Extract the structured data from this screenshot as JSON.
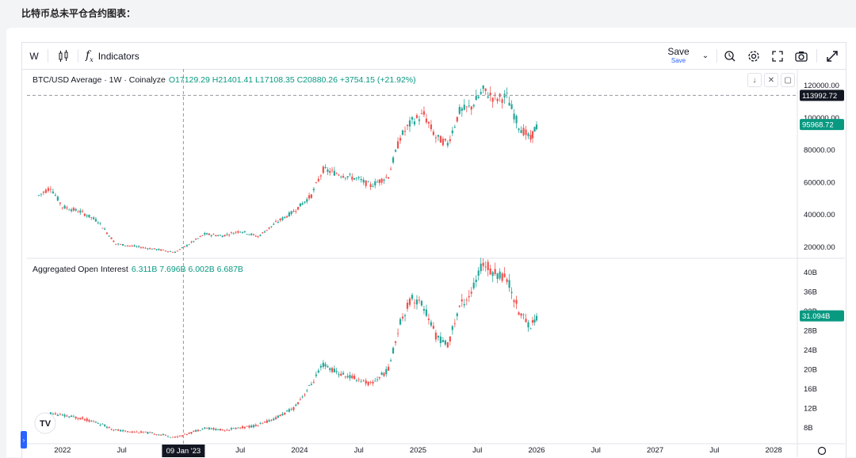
{
  "page": {
    "title": "比特币总未平仓合约图表："
  },
  "toolbar": {
    "interval": "W",
    "chart_type_icon": "candles-icon",
    "indicators_label": "Indicators",
    "indicators_icon": "function-icon",
    "save_label": "Save",
    "save_sublabel": "Save",
    "right_icons": [
      "magnifier-alert-icon",
      "gear-icon",
      "fullscreen-icon",
      "camera-icon",
      "expand-arrows-icon"
    ]
  },
  "price_pane": {
    "symbol": "BTC/USD Average · 1W · Coinalyze",
    "ohlc_text": "O17129.29 H21401.41 L17108.35 C20880.26 +3754.15 (+21.92%)",
    "crosshair_label": "113992.72",
    "last_price_label": "95968.72",
    "buttons": [
      "arrow-down-icon",
      "close-icon",
      "maximize-icon"
    ]
  },
  "oi_pane": {
    "title": "Aggregated Open Interest",
    "values_text": "6.311B 7.696B 6.002B 6.687B",
    "last_value_label": "31.094B"
  },
  "x_axis": {
    "labels": [
      {
        "t": 2022.0,
        "text": "2022"
      },
      {
        "t": 2022.5,
        "text": "Jul"
      },
      {
        "t": 2023.5,
        "text": "Jul"
      },
      {
        "t": 2024.0,
        "text": "2024"
      },
      {
        "t": 2024.5,
        "text": "Jul"
      },
      {
        "t": 2025.0,
        "text": "2025"
      },
      {
        "t": 2025.5,
        "text": "Jul"
      },
      {
        "t": 2026.0,
        "text": "2026"
      },
      {
        "t": 2026.5,
        "text": "Jul"
      },
      {
        "t": 2027.0,
        "text": "2027"
      },
      {
        "t": 2027.5,
        "text": "Jul"
      },
      {
        "t": 2028.0,
        "text": "2028"
      }
    ],
    "crosshair_date": "09 Jan '23"
  },
  "colors": {
    "up": "#26a69a",
    "down": "#ef5350",
    "accent": "#2962ff",
    "badge_dark": "#131722",
    "badge_green": "#089981"
  },
  "chart_data": [
    {
      "type": "candlestick",
      "title": "BTC/USD Average · 1W · Coinalyze",
      "x": [
        2021.8,
        2021.9,
        2022.0,
        2022.15,
        2022.3,
        2022.45,
        2022.55,
        2022.7,
        2022.85,
        2022.95,
        2023.05,
        2023.2,
        2023.35,
        2023.5,
        2023.65,
        2023.8,
        2023.95,
        2024.1,
        2024.2,
        2024.35,
        2024.5,
        2024.6,
        2024.75,
        2024.85,
        2024.95,
        2025.05,
        2025.15,
        2025.25,
        2025.35,
        2025.45,
        2025.55,
        2025.65,
        2025.75,
        2025.85,
        2025.95,
        2026.0
      ],
      "close": [
        52000,
        57000,
        45000,
        42000,
        36000,
        22000,
        21000,
        19500,
        18000,
        16800,
        21000,
        28000,
        27000,
        30000,
        26500,
        35000,
        42000,
        52000,
        68000,
        65000,
        62000,
        58000,
        64000,
        88000,
        98000,
        102000,
        88000,
        84000,
        104000,
        107000,
        117000,
        112000,
        113000,
        95000,
        87000,
        95968.72
      ],
      "y_ticks": [
        20000,
        40000,
        60000,
        80000,
        100000,
        120000
      ],
      "ylim": [
        15000,
        125000
      ],
      "xlim": [
        2021.7,
        2028.2
      ]
    },
    {
      "type": "candlestick",
      "title": "Aggregated Open Interest",
      "x": [
        2021.8,
        2021.9,
        2022.0,
        2022.15,
        2022.3,
        2022.45,
        2022.55,
        2022.7,
        2022.85,
        2022.95,
        2023.05,
        2023.2,
        2023.35,
        2023.5,
        2023.65,
        2023.8,
        2023.95,
        2024.1,
        2024.2,
        2024.35,
        2024.5,
        2024.6,
        2024.75,
        2024.85,
        2024.95,
        2025.05,
        2025.15,
        2025.25,
        2025.35,
        2025.45,
        2025.55,
        2025.65,
        2025.75,
        2025.85,
        2025.95,
        2026.0
      ],
      "close": [
        10,
        11,
        10.5,
        10,
        9,
        7.5,
        7.2,
        7,
        6.5,
        6,
        6.7,
        8,
        7.5,
        8,
        8.5,
        10,
        12,
        17,
        21,
        19,
        18,
        17,
        20,
        30,
        35,
        33,
        27,
        25,
        33,
        36,
        42,
        40,
        39,
        32,
        29,
        31.094
      ],
      "y_ticks_labels": [
        "8B",
        "12B",
        "16B",
        "20B",
        "24B",
        "28B",
        "32B",
        "36B",
        "40B"
      ],
      "y_ticks": [
        8,
        12,
        16,
        20,
        24,
        28,
        32,
        36,
        40
      ],
      "ylim": [
        6,
        42
      ],
      "xlim": [
        2021.7,
        2028.2
      ]
    }
  ]
}
